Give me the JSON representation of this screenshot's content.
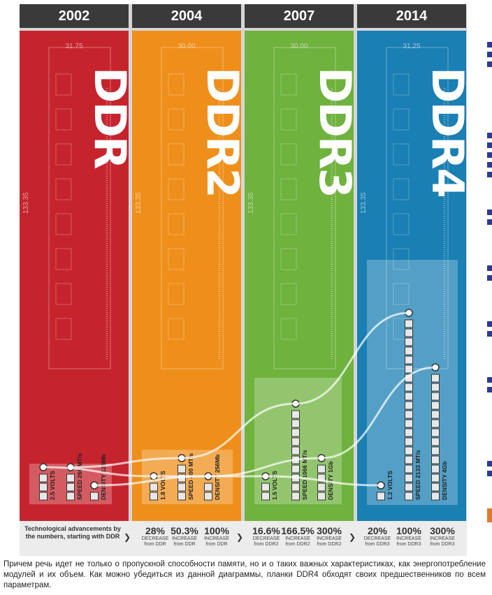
{
  "columns": [
    {
      "year": "2002",
      "name": "DDR",
      "color": "#c6242d",
      "width_mm": "31.75",
      "height_mm": "133.35"
    },
    {
      "year": "2004",
      "name": "DDR2",
      "color": "#ef8f1b",
      "width_mm": "30.00",
      "height_mm": "133.35"
    },
    {
      "year": "2007",
      "name": "DDR3",
      "color": "#6fb23e",
      "width_mm": "30.00",
      "height_mm": "133.35"
    },
    {
      "year": "2014",
      "name": "DDR4",
      "color": "#1a7fb3",
      "width_mm": "31.25",
      "height_mm": "133.35"
    }
  ],
  "bars": [
    {
      "label": "2.5 VOLTS",
      "blocks": 3
    },
    {
      "label": "SPEED 266 MT/s",
      "blocks": 3
    },
    {
      "label": "DENSITY 128Mb",
      "blocks": 1
    },
    {
      "label": "1.8 VOLTS",
      "blocks": 2
    },
    {
      "label": "SPEED 400 MT/s",
      "blocks": 4
    },
    {
      "label": "DENSITY 256Mb",
      "blocks": 2
    },
    {
      "label": "1.5 VOLTS",
      "blocks": 2
    },
    {
      "label": "SPEED 1066 MT/s",
      "blocks": 10
    },
    {
      "label": "DENSITY 1Gb",
      "blocks": 4
    },
    {
      "label": "1.2 VOLTS",
      "blocks": 1
    },
    {
      "label": "SPEED 2133 MT/s",
      "blocks": 20
    },
    {
      "label": "DENSITY 4Gb",
      "blocks": 14
    }
  ],
  "footer": {
    "label": "Technological advancements by the numbers, starting with DDR",
    "stats": [
      {
        "pct": "28%",
        "sub1": "DECREASE",
        "sub2": "from DDR"
      },
      {
        "pct": "50.3%",
        "sub1": "INCREASE",
        "sub2": "from DDR"
      },
      {
        "pct": "100%",
        "sub1": "INCREASE",
        "sub2": "from DDR"
      },
      {
        "pct": "16.6%",
        "sub1": "DECREASE",
        "sub2": "from DDR2"
      },
      {
        "pct": "166.5%",
        "sub1": "INCREASE",
        "sub2": "from DDR2"
      },
      {
        "pct": "300%",
        "sub1": "INCREASE",
        "sub2": "from DDR2"
      },
      {
        "pct": "20%",
        "sub1": "DECREASE",
        "sub2": "from DDR3"
      },
      {
        "pct": "100%",
        "sub1": "INCREASE",
        "sub2": "from DDR3"
      },
      {
        "pct": "300%",
        "sub1": "INCREASE",
        "sub2": "from DDR3"
      }
    ]
  },
  "caption": "Причем речь идет не только о пропускной способности памяти, но и о таких важных характеристиках, как энергопотребление модулей и их объем. Как можно убедиться из данной диаграммы, планки DDR4 обходят своих предшественников по всем параметрам."
}
